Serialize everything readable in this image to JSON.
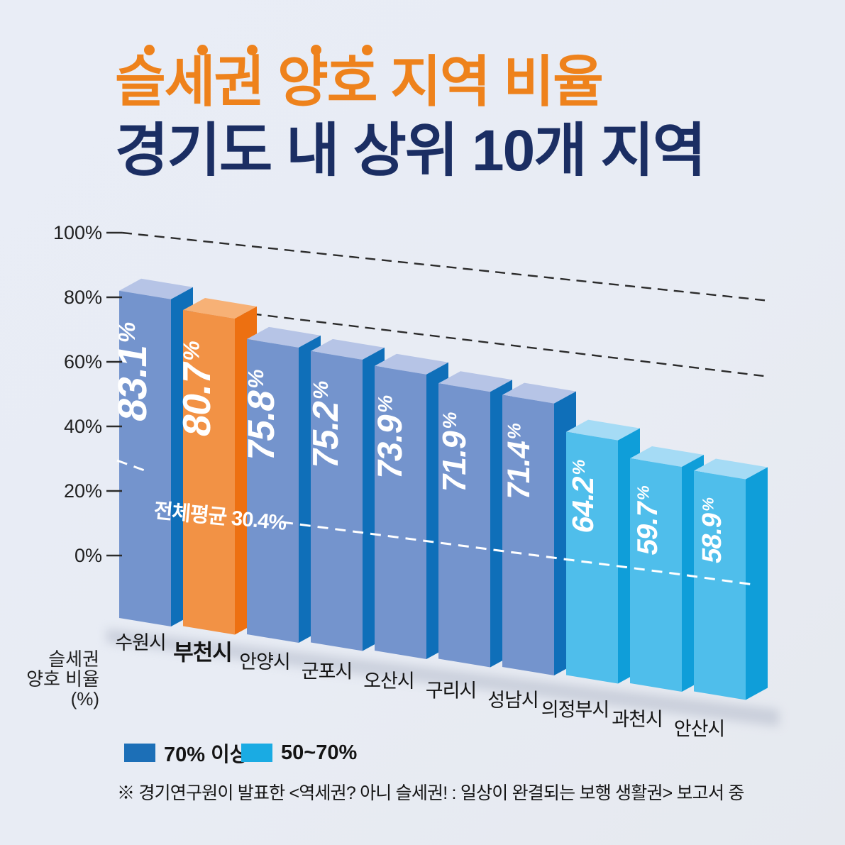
{
  "header": {
    "title_line1": "슬세권 양호 지역 비율",
    "title_line2": "경기도 내 상위 10개 지역",
    "accent_color": "#ee821c",
    "title2_color": "#1b2e63",
    "dot_count": 5
  },
  "chart_data": {
    "type": "bar",
    "title": "슬세권 양호 지역 비율 경기도 내 상위 10개 지역",
    "categories": [
      "수원시",
      "부천시",
      "안양시",
      "군포시",
      "오산시",
      "구리시",
      "성남시",
      "의정부시",
      "과천시",
      "안산시"
    ],
    "values": [
      83.1,
      80.7,
      75.8,
      75.2,
      73.9,
      71.9,
      71.4,
      64.2,
      59.7,
      58.9
    ],
    "value_suffix": "%",
    "highlight_index": 1,
    "highlight_category": "부천시",
    "y_ticks": [
      {
        "label": "100%",
        "value": 100
      },
      {
        "label": "80%",
        "value": 80
      },
      {
        "label": "60%",
        "value": 60
      },
      {
        "label": "40%",
        "value": 40
      },
      {
        "label": "20%",
        "value": 20
      },
      {
        "label": "0%",
        "value": 0
      }
    ],
    "ylim": [
      0,
      100
    ],
    "ylabel_lines": [
      "슬세권",
      "양호 비율",
      "(%)"
    ],
    "average": {
      "value": 30.4,
      "label": "전체평균 30.4%"
    },
    "gridlines_pct": [
      100,
      80
    ],
    "colors": {
      "over70": {
        "front": "#7494cd",
        "side": "#0f6fb9",
        "top": "#b6c4e6"
      },
      "range50_70": {
        "front": "#4fbeeb",
        "side": "#0f9ed9",
        "top": "#a5dbf5"
      },
      "highlight": {
        "front": "#f29245",
        "side": "#ed7011",
        "top": "#f7b176"
      },
      "value_text": "#ffffff",
      "axis_text": "#1f1f1f",
      "gridline": "#2b2b2b",
      "average_line": "#ffffff"
    },
    "color_rule": "70% 이상 = blue, 50~70% = light blue, 부천시 highlighted orange"
  },
  "legend": {
    "items": [
      {
        "label": "70% 이상",
        "color": "#1c6fb7"
      },
      {
        "label": "50~70%",
        "color": "#1aabe3"
      }
    ]
  },
  "footnote": "※ 경기연구원이 발표한 <역세권? 아니 슬세권! : 일상이 완결되는 보행 생활권> 보고서 중"
}
